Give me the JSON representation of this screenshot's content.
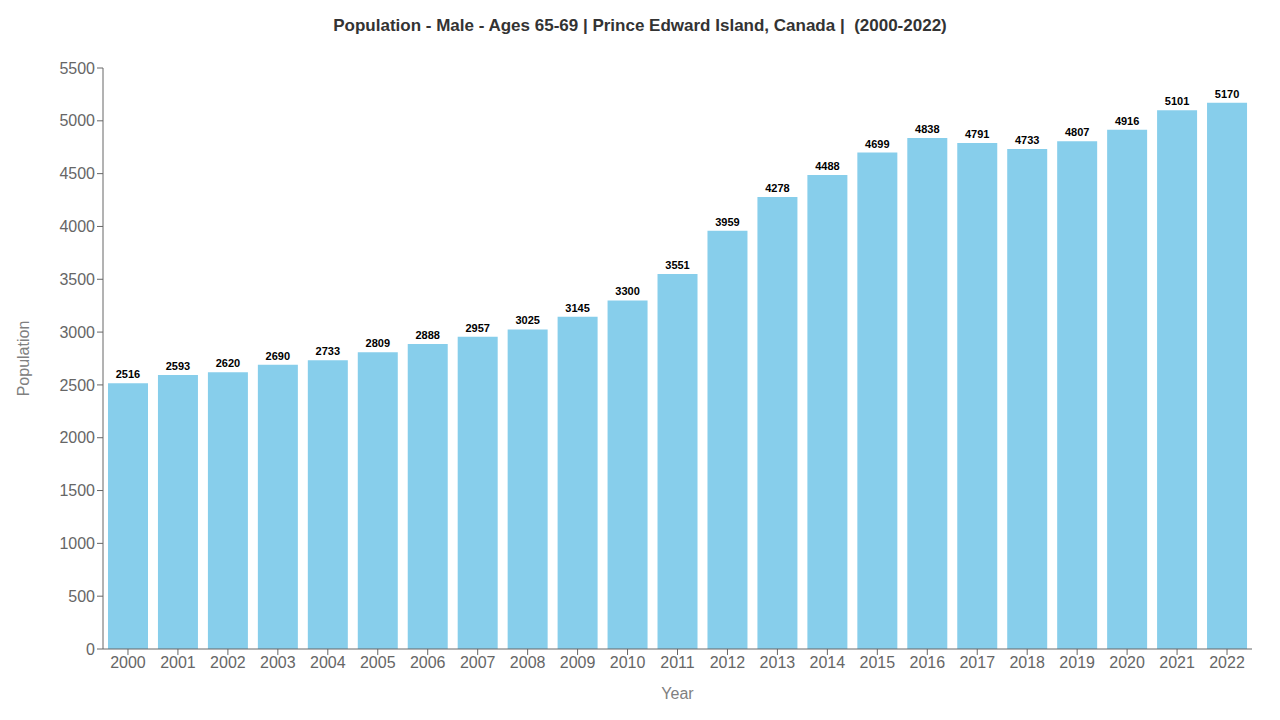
{
  "chart_data": {
    "type": "bar",
    "title": "Population - Male - Ages 65-69 | Prince Edward Island, Canada |  (2000-2022)",
    "xlabel": "Year",
    "ylabel": "Population",
    "categories": [
      "2000",
      "2001",
      "2002",
      "2003",
      "2004",
      "2005",
      "2006",
      "2007",
      "2008",
      "2009",
      "2010",
      "2011",
      "2012",
      "2013",
      "2014",
      "2015",
      "2016",
      "2017",
      "2018",
      "2019",
      "2020",
      "2021",
      "2022"
    ],
    "values": [
      2516,
      2593,
      2620,
      2690,
      2733,
      2809,
      2888,
      2957,
      3025,
      3145,
      3300,
      3551,
      3959,
      4278,
      4488,
      4699,
      4838,
      4791,
      4733,
      4807,
      4916,
      5101,
      5170
    ],
    "color": "#87CEEB",
    "ylim": [
      0,
      5500
    ],
    "yticks": [
      0,
      500,
      1000,
      1500,
      2000,
      2500,
      3000,
      3500,
      4000,
      4500,
      5000,
      5500
    ],
    "grid": false,
    "data_labels": true
  }
}
